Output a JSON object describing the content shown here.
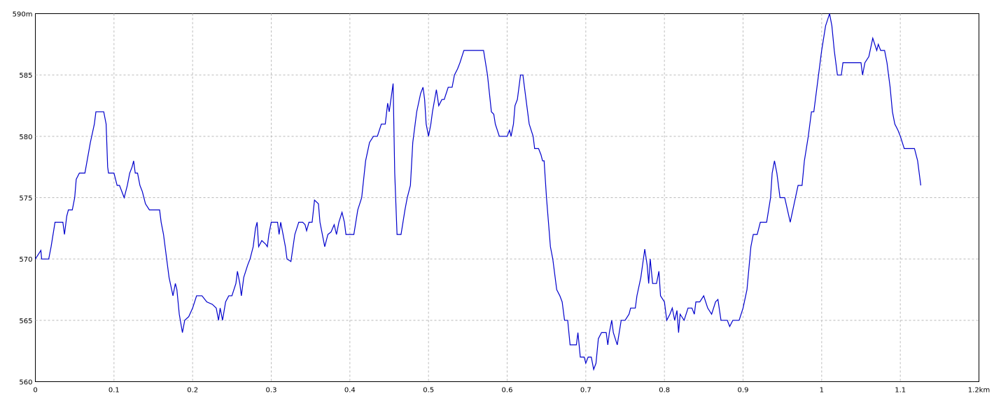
{
  "chart_data": {
    "type": "line",
    "x": [
      0,
      0.007,
      0.008,
      0.017,
      0.02,
      0.025,
      0.035,
      0.037,
      0.04,
      0.042,
      0.047,
      0.05,
      0.052,
      0.056,
      0.063,
      0.07,
      0.075,
      0.077,
      0.087,
      0.09,
      0.092,
      0.093,
      0.1,
      0.104,
      0.107,
      0.113,
      0.117,
      0.12,
      0.123,
      0.125,
      0.127,
      0.13,
      0.133,
      0.136,
      0.14,
      0.145,
      0.158,
      0.16,
      0.163,
      0.167,
      0.17,
      0.175,
      0.178,
      0.18,
      0.183,
      0.187,
      0.19,
      0.195,
      0.2,
      0.205,
      0.212,
      0.218,
      0.225,
      0.23,
      0.233,
      0.235,
      0.238,
      0.242,
      0.246,
      0.25,
      0.255,
      0.257,
      0.26,
      0.262,
      0.265,
      0.27,
      0.273,
      0.277,
      0.28,
      0.282,
      0.284,
      0.288,
      0.293,
      0.295,
      0.297,
      0.3,
      0.308,
      0.31,
      0.312,
      0.315,
      0.318,
      0.32,
      0.325,
      0.33,
      0.335,
      0.34,
      0.343,
      0.345,
      0.348,
      0.352,
      0.355,
      0.36,
      0.362,
      0.365,
      0.368,
      0.372,
      0.376,
      0.38,
      0.383,
      0.386,
      0.39,
      0.393,
      0.395,
      0.405,
      0.41,
      0.415,
      0.42,
      0.425,
      0.43,
      0.435,
      0.44,
      0.445,
      0.448,
      0.45,
      0.455,
      0.457,
      0.46,
      0.465,
      0.47,
      0.473,
      0.477,
      0.48,
      0.485,
      0.49,
      0.493,
      0.495,
      0.497,
      0.5,
      0.503,
      0.505,
      0.51,
      0.513,
      0.517,
      0.52,
      0.525,
      0.53,
      0.533,
      0.537,
      0.54,
      0.545,
      0.57,
      0.575,
      0.58,
      0.583,
      0.585,
      0.59,
      0.6,
      0.603,
      0.605,
      0.608,
      0.61,
      0.613,
      0.617,
      0.62,
      0.625,
      0.628,
      0.633,
      0.635,
      0.64,
      0.643,
      0.645,
      0.647,
      0.65,
      0.655,
      0.658,
      0.663,
      0.667,
      0.67,
      0.673,
      0.677,
      0.68,
      0.688,
      0.69,
      0.693,
      0.698,
      0.7,
      0.703,
      0.707,
      0.71,
      0.713,
      0.716,
      0.72,
      0.726,
      0.728,
      0.73,
      0.733,
      0.735,
      0.74,
      0.745,
      0.75,
      0.755,
      0.757,
      0.763,
      0.765,
      0.77,
      0.775,
      0.778,
      0.78,
      0.782,
      0.785,
      0.79,
      0.793,
      0.795,
      0.8,
      0.803,
      0.807,
      0.81,
      0.813,
      0.816,
      0.818,
      0.82,
      0.825,
      0.83,
      0.835,
      0.838,
      0.84,
      0.845,
      0.85,
      0.855,
      0.86,
      0.865,
      0.868,
      0.872,
      0.88,
      0.883,
      0.887,
      0.895,
      0.9,
      0.905,
      0.91,
      0.913,
      0.918,
      0.922,
      0.93,
      0.935,
      0.937,
      0.94,
      0.943,
      0.947,
      0.953,
      0.96,
      0.965,
      0.97,
      0.975,
      0.978,
      0.983,
      0.987,
      0.99,
      0.995,
      1.0,
      1.005,
      1.01,
      1.013,
      1.016,
      1.02,
      1.025,
      1.027,
      1.05,
      1.052,
      1.055,
      1.06,
      1.065,
      1.07,
      1.072,
      1.075,
      1.08,
      1.083,
      1.087,
      1.09,
      1.093,
      1.097,
      1.1,
      1.105,
      1.118,
      1.122,
      1.126
    ],
    "values": [
      570,
      570.7,
      570,
      570,
      571,
      573,
      573,
      572,
      573.5,
      574,
      574,
      575,
      576.5,
      577,
      577,
      579.5,
      581,
      582,
      582,
      581,
      577.5,
      577,
      577,
      576,
      576,
      575,
      576,
      577,
      577.5,
      578,
      577,
      577,
      576,
      575.5,
      574.5,
      574,
      574,
      573,
      572,
      570,
      568.5,
      567,
      568,
      567.5,
      565.5,
      564,
      565,
      565.3,
      566,
      567,
      567,
      566.5,
      566.3,
      566,
      565,
      566,
      565,
      566.5,
      567,
      567,
      568,
      569,
      568,
      567,
      568.5,
      569.5,
      570,
      571,
      572.5,
      573,
      571,
      571.5,
      571.2,
      571,
      572,
      573,
      573,
      572,
      573,
      572,
      571,
      570,
      569.8,
      572,
      573,
      573,
      572.8,
      572.3,
      573,
      573,
      574.8,
      574.5,
      573,
      572,
      571,
      572,
      572.2,
      572.8,
      572,
      573,
      573.8,
      573,
      572,
      572,
      574,
      575,
      578,
      579.5,
      580,
      580,
      581,
      581,
      582.7,
      582,
      584.3,
      577,
      572,
      572,
      574,
      575,
      576,
      579.5,
      582,
      583.5,
      584,
      583,
      581,
      580,
      581,
      582,
      583.8,
      582.5,
      583,
      583,
      584,
      584,
      585,
      585.5,
      586,
      587,
      587,
      585,
      582,
      581.8,
      581,
      580,
      580,
      580.5,
      580,
      581,
      582.5,
      583,
      585,
      585,
      582.5,
      581,
      580,
      579,
      579,
      578.5,
      578,
      578,
      575,
      571,
      570,
      567.5,
      567,
      566.5,
      565,
      565,
      563,
      563,
      564,
      562,
      562,
      561.5,
      562,
      562,
      561,
      561.5,
      563.5,
      564,
      564,
      563,
      564,
      565,
      564,
      563,
      565,
      565,
      565.5,
      566,
      566,
      567,
      568.5,
      570.8,
      569.5,
      568,
      570,
      568,
      568,
      569,
      567,
      566.5,
      565,
      565.5,
      566,
      565,
      565.8,
      564,
      565.5,
      565,
      566,
      566,
      565.5,
      566.5,
      566.5,
      567,
      566,
      565.5,
      566.5,
      566.7,
      565,
      565,
      564.5,
      565,
      565,
      566,
      567.5,
      571,
      572,
      572,
      573,
      573,
      575,
      577,
      578,
      577,
      575,
      575,
      573,
      574.5,
      576,
      576,
      578,
      580,
      582,
      582,
      584.5,
      587,
      589,
      590,
      589,
      587,
      585,
      585,
      586,
      586,
      585,
      586,
      586.5,
      588,
      587,
      587.5,
      587,
      587,
      586,
      584,
      582,
      581,
      580.5,
      580,
      579,
      579,
      578,
      576
    ],
    "color": "#0000cc",
    "xlim": [
      0,
      1.2
    ],
    "ylim": [
      560,
      590
    ],
    "xticks": [
      0,
      0.1,
      0.2,
      0.3,
      0.4,
      0.5,
      0.6,
      0.7,
      0.8,
      0.9,
      1,
      1.1,
      {
        "value": 1.2,
        "label": "1.2km"
      }
    ],
    "yticks": [
      560,
      565,
      570,
      575,
      580,
      585,
      {
        "value": 590,
        "label": "590m"
      }
    ],
    "grid": true
  }
}
